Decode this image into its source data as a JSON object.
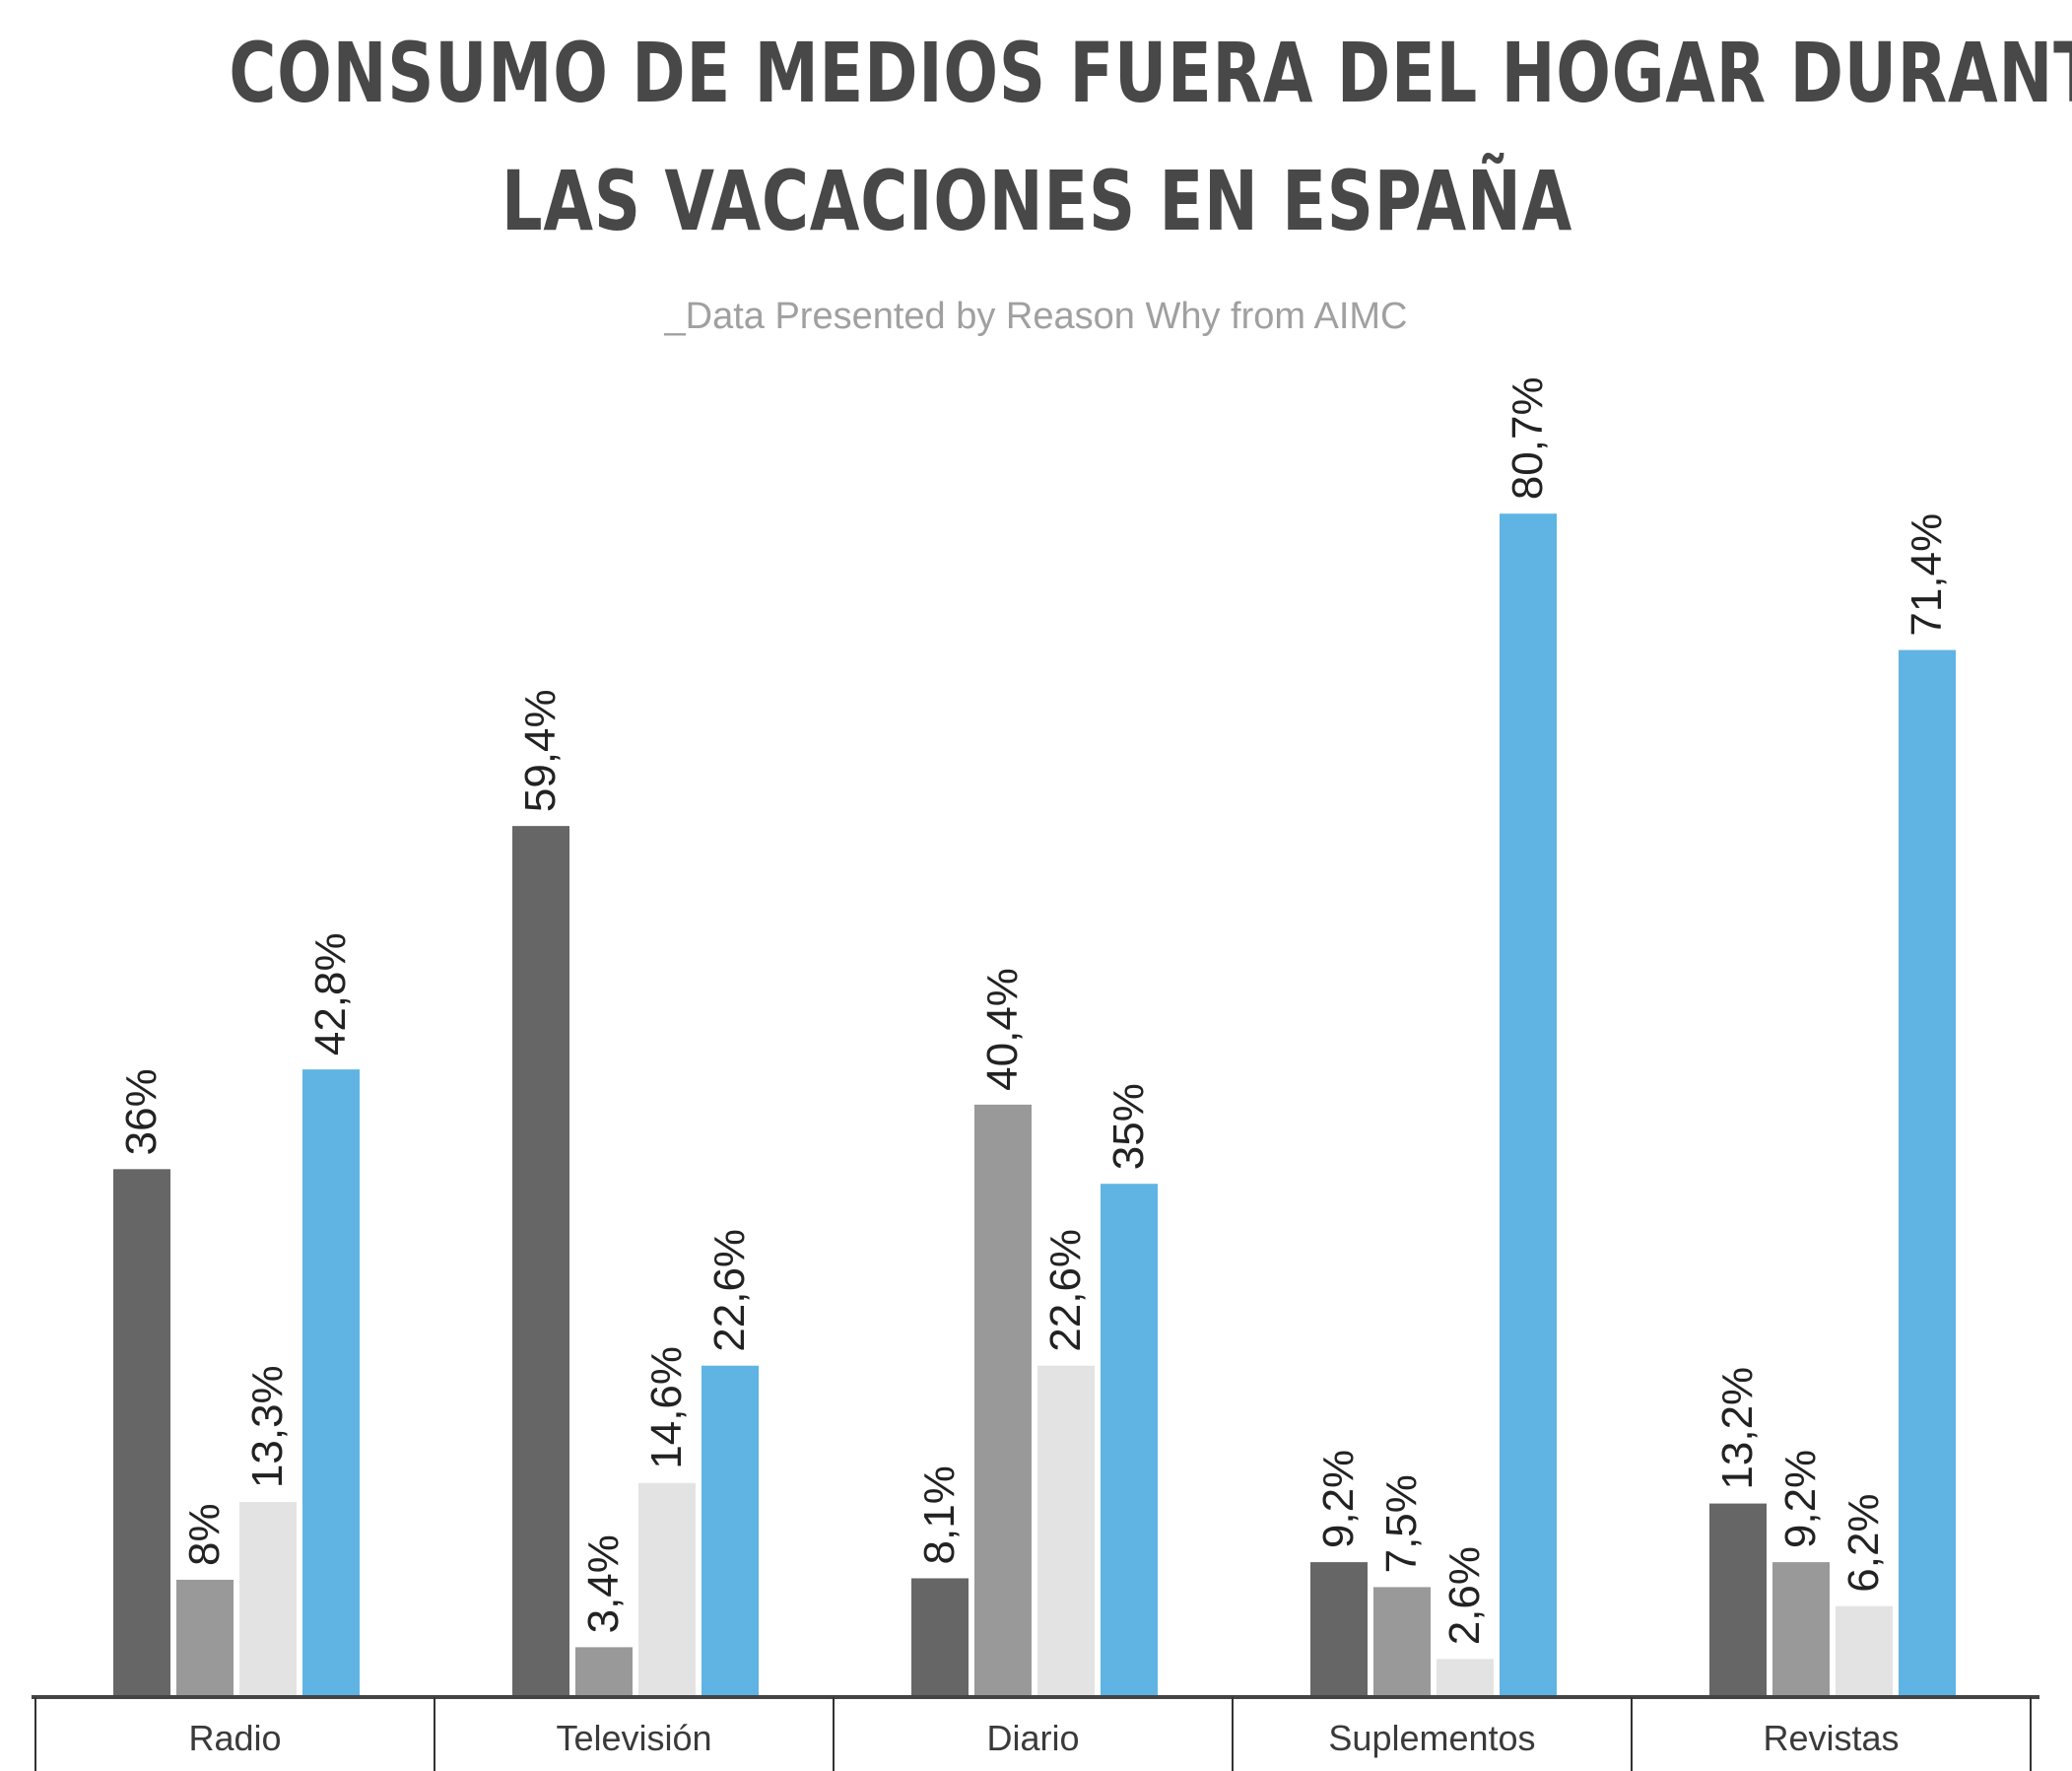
{
  "title_lines": [
    "CONSUMO DE MEDIOS FUERA DEL HOGAR DURANTE",
    "LAS VACACIONES EN ESPAÑA"
  ],
  "subtitle": "_Data Presented by Reason Why from AIMC",
  "chart_data": {
    "type": "bar",
    "title": "CONSUMO DE MEDIOS FUERA DEL HOGAR DURANTE LAS VACACIONES EN ESPAÑA",
    "categories": [
      "Radio",
      "Televisión",
      "Diario",
      "Suplementos",
      "Revistas"
    ],
    "series": [
      {
        "color": "#666666",
        "values": [
          36,
          59.4,
          8.1,
          9.2,
          13.2
        ],
        "labels": [
          "36%",
          "59,4%",
          "8,1%",
          "9,2%",
          "13,2%"
        ]
      },
      {
        "color": "#999999",
        "values": [
          8,
          3.4,
          40.4,
          7.5,
          9.2
        ],
        "labels": [
          "8%",
          "3,4%",
          "40,4%",
          "7,5%",
          "9,2%"
        ]
      },
      {
        "color": "#e3e3e3",
        "values": [
          13.3,
          14.6,
          22.6,
          2.6,
          6.2
        ],
        "labels": [
          "13,3%",
          "14,6%",
          "22,6%",
          "2,6%",
          "6,2%"
        ]
      },
      {
        "color": "#5fb4e3",
        "values": [
          42.8,
          22.6,
          35,
          80.7,
          71.4
        ],
        "labels": [
          "42,8%",
          "22,6%",
          "35%",
          "80,7%",
          "71,4%"
        ]
      }
    ],
    "ylim": [
      0,
      100
    ],
    "grid": false,
    "legend": "none",
    "data_labels": "rotated-vertical"
  }
}
